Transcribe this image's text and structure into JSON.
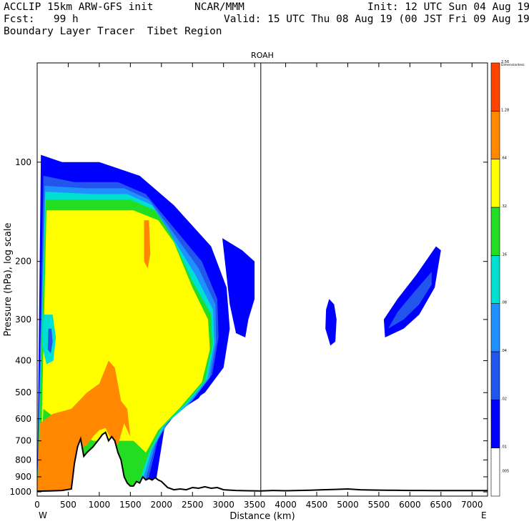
{
  "header": {
    "model": "ACCLIP 15km ARW-GFS init",
    "org": "NCAR/MMM",
    "init": "Init: 12 UTC Sun 04 Aug 19",
    "fcst": "Fcst:   99 h",
    "valid": "Valid: 15 UTC Thu 08 Aug 19 (00 JST Fri 09 Aug 19)",
    "product": "Boundary Layer Tracer  Tibet Region"
  },
  "chart_data": {
    "type": "heatmap",
    "title": "ROAH",
    "xlabel": "Distance (km)",
    "ylabel": "Pressure (hPa), log scale",
    "y_scale": "log",
    "xlim": [
      0,
      7250
    ],
    "ylim": [
      1030,
      50
    ],
    "x_ticks": [
      {
        "value": 0,
        "label": "0"
      },
      {
        "value": 500,
        "label": "500"
      },
      {
        "value": 1000,
        "label": "1000"
      },
      {
        "value": 1500,
        "label": "1500"
      },
      {
        "value": 2000,
        "label": "2000"
      },
      {
        "value": 2500,
        "label": "2500"
      },
      {
        "value": 3000,
        "label": "3000"
      },
      {
        "value": 3500,
        "label": "3500"
      },
      {
        "value": 4000,
        "label": "4000"
      },
      {
        "value": 4500,
        "label": "4500"
      },
      {
        "value": 5000,
        "label": "5000"
      },
      {
        "value": 5500,
        "label": "5500"
      },
      {
        "value": 6000,
        "label": "6000"
      },
      {
        "value": 6500,
        "label": "6500"
      },
      {
        "value": 7000,
        "label": "7000"
      }
    ],
    "y_ticks": [
      {
        "value": 100,
        "label": "100"
      },
      {
        "value": 200,
        "label": "200"
      },
      {
        "value": 300,
        "label": "300"
      },
      {
        "value": 400,
        "label": "400"
      },
      {
        "value": 500,
        "label": "500"
      },
      {
        "value": 600,
        "label": "600"
      },
      {
        "value": 700,
        "label": "700"
      },
      {
        "value": 800,
        "label": "800"
      },
      {
        "value": 900,
        "label": "900"
      },
      {
        "value": 1000,
        "label": "1000"
      }
    ],
    "x_end_labels": {
      "left": "W",
      "right": "E"
    },
    "marker_line_x": 3600,
    "colorbar": {
      "title": "Dimensionless",
      "colors": [
        "#ffffff",
        "#0000ff",
        "#2255ee",
        "#1e90ff",
        "#00e0d0",
        "#22dd22",
        "#ffff00",
        "#ff8800",
        "#ff4400"
      ],
      "levels": [
        ".005",
        ".01",
        ".02",
        ".04",
        ".08",
        ".16",
        ".32",
        ".64",
        "1.28",
        "2.56"
      ]
    },
    "terrain": {
      "x": [
        0,
        200,
        400,
        550,
        600,
        650,
        700,
        750,
        800,
        900,
        1000,
        1050,
        1100,
        1150,
        1200,
        1250,
        1300,
        1350,
        1400,
        1450,
        1500,
        1550,
        1600,
        1650,
        1700,
        1750,
        1800,
        1850,
        1900,
        1950,
        2000,
        2100,
        2200,
        2300,
        2400,
        2500,
        2600,
        2700,
        2800,
        2900,
        3000,
        3200,
        3400,
        3600,
        3800,
        4000,
        4200,
        4400,
        4600,
        4800,
        5000,
        5200,
        5400,
        5600,
        5800,
        6000,
        6200,
        6400,
        6600,
        6800,
        7000,
        7250
      ],
      "y": [
        995,
        993,
        990,
        980,
        820,
        730,
        690,
        780,
        760,
        730,
        690,
        670,
        660,
        700,
        680,
        700,
        760,
        800,
        900,
        940,
        960,
        960,
        930,
        940,
        900,
        920,
        910,
        920,
        905,
        920,
        930,
        970,
        985,
        980,
        985,
        970,
        975,
        965,
        975,
        970,
        985,
        990,
        992,
        993,
        990,
        992,
        990,
        988,
        985,
        983,
        980,
        985,
        987,
        988,
        989,
        990,
        990,
        991,
        991,
        991,
        991,
        991
      ]
    },
    "tracer_regions": [
      {
        "level": ".005",
        "outline": [
          [
            0,
            1000
          ],
          [
            60,
            95
          ],
          [
            400,
            100
          ],
          [
            1000,
            100
          ],
          [
            1650,
            110
          ],
          [
            2200,
            135
          ],
          [
            2800,
            180
          ],
          [
            3050,
            240
          ],
          [
            3100,
            320
          ],
          [
            3000,
            420
          ],
          [
            2700,
            500
          ],
          [
            2300,
            560
          ],
          [
            2050,
            640
          ],
          [
            1900,
            960
          ],
          [
            1000,
            1000
          ]
        ]
      },
      {
        "level": ".005",
        "outline": [
          [
            2980,
            170
          ],
          [
            3300,
            185
          ],
          [
            3500,
            200
          ],
          [
            3500,
            260
          ],
          [
            3400,
            300
          ],
          [
            3350,
            340
          ],
          [
            3200,
            330
          ],
          [
            3100,
            270
          ]
        ]
      },
      {
        "level": ".005",
        "outline": [
          [
            4700,
            260
          ],
          [
            4780,
            270
          ],
          [
            4820,
            300
          ],
          [
            4800,
            350
          ],
          [
            4720,
            360
          ],
          [
            4640,
            320
          ],
          [
            4650,
            280
          ]
        ]
      },
      {
        "level": ".005",
        "outline": [
          [
            5600,
            340
          ],
          [
            5900,
            320
          ],
          [
            6150,
            290
          ],
          [
            6400,
            240
          ],
          [
            6500,
            185
          ],
          [
            6420,
            180
          ],
          [
            6100,
            220
          ],
          [
            5800,
            260
          ],
          [
            5580,
            300
          ]
        ]
      },
      {
        "level": ".01",
        "outline": [
          [
            0,
            1000
          ],
          [
            80,
            105
          ],
          [
            500,
            110
          ],
          [
            1200,
            110
          ],
          [
            1700,
            120
          ],
          [
            2150,
            145
          ],
          [
            2700,
            190
          ],
          [
            2950,
            250
          ],
          [
            3000,
            330
          ],
          [
            2900,
            430
          ],
          [
            2600,
            520
          ],
          [
            2200,
            580
          ],
          [
            2000,
            660
          ],
          [
            1850,
            960
          ],
          [
            1000,
            1000
          ]
        ]
      },
      {
        "level": ".01",
        "outline": [
          [
            3020,
            185
          ],
          [
            3300,
            200
          ],
          [
            3450,
            215
          ],
          [
            3420,
            270
          ],
          [
            3300,
            300
          ],
          [
            3200,
            290
          ],
          [
            3100,
            250
          ]
        ]
      },
      {
        "level": ".02",
        "outline": [
          [
            0,
            1000
          ],
          [
            100,
            110
          ],
          [
            600,
            115
          ],
          [
            1300,
            115
          ],
          [
            1750,
            125
          ],
          [
            2100,
            150
          ],
          [
            2650,
            200
          ],
          [
            2900,
            260
          ],
          [
            2920,
            340
          ],
          [
            2820,
            440
          ],
          [
            2500,
            530
          ],
          [
            2150,
            600
          ],
          [
            1950,
            690
          ],
          [
            1750,
            980
          ],
          [
            1000,
            1000
          ]
        ]
      },
      {
        "level": ".02",
        "outline": [
          [
            5650,
            320
          ],
          [
            5900,
            300
          ],
          [
            6150,
            270
          ],
          [
            6350,
            235
          ],
          [
            6350,
            215
          ],
          [
            6050,
            250
          ],
          [
            5800,
            285
          ]
        ]
      },
      {
        "level": ".04",
        "outline": [
          [
            0,
            1000
          ],
          [
            120,
            118
          ],
          [
            800,
            120
          ],
          [
            1400,
            120
          ],
          [
            1800,
            130
          ],
          [
            2100,
            155
          ],
          [
            2600,
            210
          ],
          [
            2870,
            270
          ],
          [
            2880,
            350
          ],
          [
            2780,
            450
          ],
          [
            2450,
            540
          ],
          [
            2100,
            615
          ],
          [
            1900,
            720
          ],
          [
            1700,
            980
          ],
          [
            1000,
            1000
          ]
        ]
      },
      {
        "level": ".08",
        "outline": [
          [
            0,
            1000
          ],
          [
            130,
            123
          ],
          [
            900,
            125
          ],
          [
            1450,
            125
          ],
          [
            1850,
            135
          ],
          [
            2100,
            160
          ],
          [
            2550,
            220
          ],
          [
            2830,
            280
          ],
          [
            2850,
            355
          ],
          [
            2740,
            455
          ],
          [
            2400,
            545
          ],
          [
            2050,
            630
          ],
          [
            1850,
            740
          ],
          [
            1650,
            980
          ],
          [
            1000,
            1000
          ]
        ]
      },
      {
        "level": ".16",
        "outline": [
          [
            0,
            1000
          ],
          [
            140,
            130
          ],
          [
            1000,
            130
          ],
          [
            1500,
            130
          ],
          [
            1900,
            140
          ],
          [
            2150,
            165
          ],
          [
            2500,
            230
          ],
          [
            2800,
            290
          ],
          [
            2820,
            360
          ],
          [
            2700,
            460
          ],
          [
            2350,
            550
          ],
          [
            2000,
            640
          ],
          [
            1800,
            760
          ],
          [
            1600,
            980
          ],
          [
            1000,
            1000
          ]
        ]
      },
      {
        "level": ".32",
        "outline": [
          [
            60,
            800
          ],
          [
            150,
            140
          ],
          [
            1000,
            140
          ],
          [
            1550,
            140
          ],
          [
            1950,
            150
          ],
          [
            2200,
            175
          ],
          [
            2500,
            240
          ],
          [
            2750,
            300
          ],
          [
            2780,
            370
          ],
          [
            2650,
            465
          ],
          [
            2300,
            555
          ],
          [
            1950,
            650
          ],
          [
            1750,
            760
          ],
          [
            1550,
            700
          ],
          [
            1200,
            700
          ],
          [
            900,
            700
          ],
          [
            400,
            620
          ],
          [
            100,
            560
          ]
        ]
      },
      {
        "level": ".64",
        "outline": [
          [
            0,
            1000
          ],
          [
            40,
            620
          ],
          [
            250,
            580
          ],
          [
            550,
            560
          ],
          [
            800,
            500
          ],
          [
            1000,
            470
          ],
          [
            1150,
            400
          ],
          [
            1250,
            420
          ],
          [
            1350,
            530
          ],
          [
            1450,
            560
          ],
          [
            1500,
            680
          ],
          [
            1400,
            620
          ],
          [
            1300,
            720
          ],
          [
            1200,
            700
          ],
          [
            1100,
            640
          ],
          [
            1000,
            650
          ],
          [
            900,
            680
          ],
          [
            800,
            720
          ],
          [
            700,
            740
          ],
          [
            650,
            850
          ],
          [
            600,
            980
          ],
          [
            300,
            995
          ]
        ]
      },
      {
        "level": ".64",
        "outline": [
          [
            1720,
            150
          ],
          [
            1800,
            150
          ],
          [
            1820,
            190
          ],
          [
            1780,
            210
          ],
          [
            1720,
            200
          ]
        ]
      },
      {
        "level": ".08",
        "outline": [
          [
            100,
            290
          ],
          [
            250,
            290
          ],
          [
            300,
            340
          ],
          [
            260,
            400
          ],
          [
            150,
            410
          ],
          [
            80,
            360
          ]
        ]
      },
      {
        "level": ".02",
        "outline": [
          [
            180,
            320
          ],
          [
            230,
            320
          ],
          [
            250,
            350
          ],
          [
            220,
            380
          ],
          [
            170,
            370
          ]
        ]
      }
    ]
  }
}
